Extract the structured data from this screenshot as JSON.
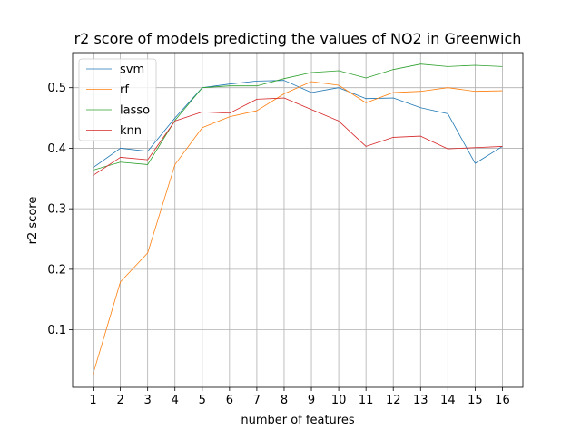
{
  "chart_data": {
    "type": "line",
    "title": "r2 score of models predicting the values of NO2 in Greenwich",
    "xlabel": "number of features",
    "ylabel": "r2 score",
    "x": [
      1,
      2,
      3,
      4,
      5,
      6,
      7,
      8,
      9,
      10,
      11,
      12,
      13,
      14,
      15,
      16
    ],
    "xlim": [
      0.25,
      16.75
    ],
    "ylim": [
      0.005,
      0.558
    ],
    "yticks": [
      0.1,
      0.2,
      0.3,
      0.4,
      0.5
    ],
    "ytick_labels": [
      "0.1",
      "0.2",
      "0.3",
      "0.4",
      "0.5"
    ],
    "grid": true,
    "legend_position": "top-left",
    "series": [
      {
        "name": "svm",
        "color": "#1f77b4",
        "values": [
          0.368,
          0.4,
          0.395,
          0.45,
          0.5,
          0.506,
          0.511,
          0.512,
          0.492,
          0.5,
          0.482,
          0.483,
          0.467,
          0.457,
          0.375,
          0.403
        ]
      },
      {
        "name": "rf",
        "color": "#ff7f0e",
        "values": [
          0.027,
          0.179,
          0.227,
          0.373,
          0.434,
          0.452,
          0.462,
          0.49,
          0.51,
          0.504,
          0.475,
          0.492,
          0.494,
          0.5,
          0.494,
          0.495
        ]
      },
      {
        "name": "lasso",
        "color": "#2ca02c",
        "values": [
          0.364,
          0.377,
          0.373,
          0.446,
          0.5,
          0.503,
          0.503,
          0.515,
          0.525,
          0.528,
          0.516,
          0.53,
          0.539,
          0.535,
          0.537,
          0.535
        ]
      },
      {
        "name": "knn",
        "color": "#d62728",
        "values": [
          0.355,
          0.385,
          0.381,
          0.445,
          0.46,
          0.458,
          0.481,
          0.483,
          0.464,
          0.445,
          0.403,
          0.418,
          0.42,
          0.399,
          0.401,
          0.403
        ]
      }
    ]
  }
}
